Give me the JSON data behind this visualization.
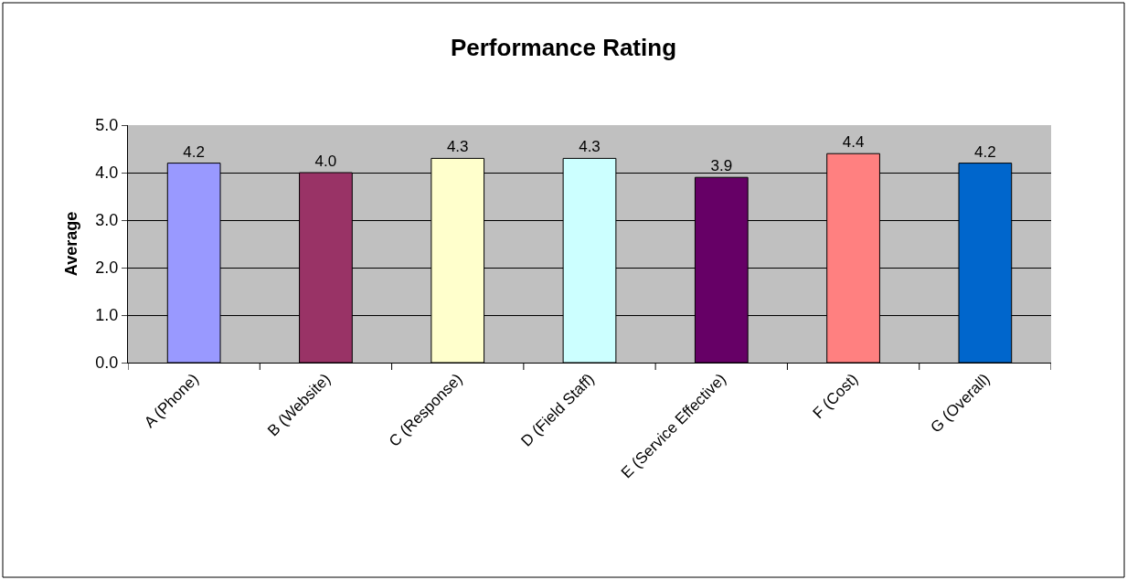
{
  "chart_data": {
    "type": "bar",
    "title": "Performance Rating",
    "ylabel": "Average",
    "categories": [
      "A (Phone)",
      "B (Website)",
      "C (Response)",
      "D (Field Staff)",
      "E (Service Effective)",
      "F (Cost)",
      "G (Overall)"
    ],
    "values": [
      4.2,
      4.0,
      4.3,
      4.3,
      3.9,
      4.4,
      4.2
    ],
    "colors": [
      "#9999ff",
      "#993366",
      "#ffffcc",
      "#ccffff",
      "#660066",
      "#ff8080",
      "#0066cc"
    ],
    "value_labels": [
      "4.2",
      "4.0",
      "4.3",
      "4.3",
      "3.9",
      "4.4",
      "4.2"
    ],
    "ylim": [
      0,
      5
    ],
    "yticks": [
      {
        "value": 0,
        "label": "0.0"
      },
      {
        "value": 1,
        "label": "1.0"
      },
      {
        "value": 2,
        "label": "2.0"
      },
      {
        "value": 3,
        "label": "3.0"
      },
      {
        "value": 4,
        "label": "4.0"
      },
      {
        "value": 5,
        "label": "5.0"
      }
    ],
    "grid": "y"
  }
}
